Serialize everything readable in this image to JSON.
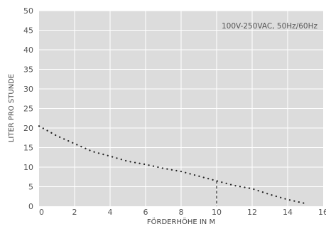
{
  "chart_data": {
    "type": "line",
    "xlabel": "FÖRDERHÖHE IN M",
    "ylabel": "LITER PRO STUNDE",
    "xlim": [
      0,
      16
    ],
    "ylim": [
      0,
      50
    ],
    "x_ticks": [
      "0",
      "2",
      "4",
      "6",
      "8",
      "10",
      "12",
      "14",
      "16"
    ],
    "y_ticks": [
      "0",
      "5",
      "10",
      "15",
      "20",
      "25",
      "30",
      "35",
      "40",
      "45",
      "50"
    ],
    "grid": true,
    "annotation": "100V-250VAC, 50Hz/60Hz",
    "series": [
      {
        "x": [
          0,
          1,
          2,
          3,
          4,
          5,
          6,
          7,
          8,
          9,
          10,
          11,
          12,
          13,
          14,
          15
        ],
        "y": [
          20.5,
          18,
          16,
          14,
          12.8,
          11.5,
          10.7,
          9.7,
          8.9,
          7.7,
          6.5,
          5.3,
          4.5,
          3,
          1.7,
          0.7
        ],
        "style": "dotted",
        "color": "#222222"
      }
    ],
    "reference_x": 10,
    "colors": {
      "plot_bg": "#dcdcdc",
      "grid": "#ffffff",
      "line": "#222222"
    }
  }
}
